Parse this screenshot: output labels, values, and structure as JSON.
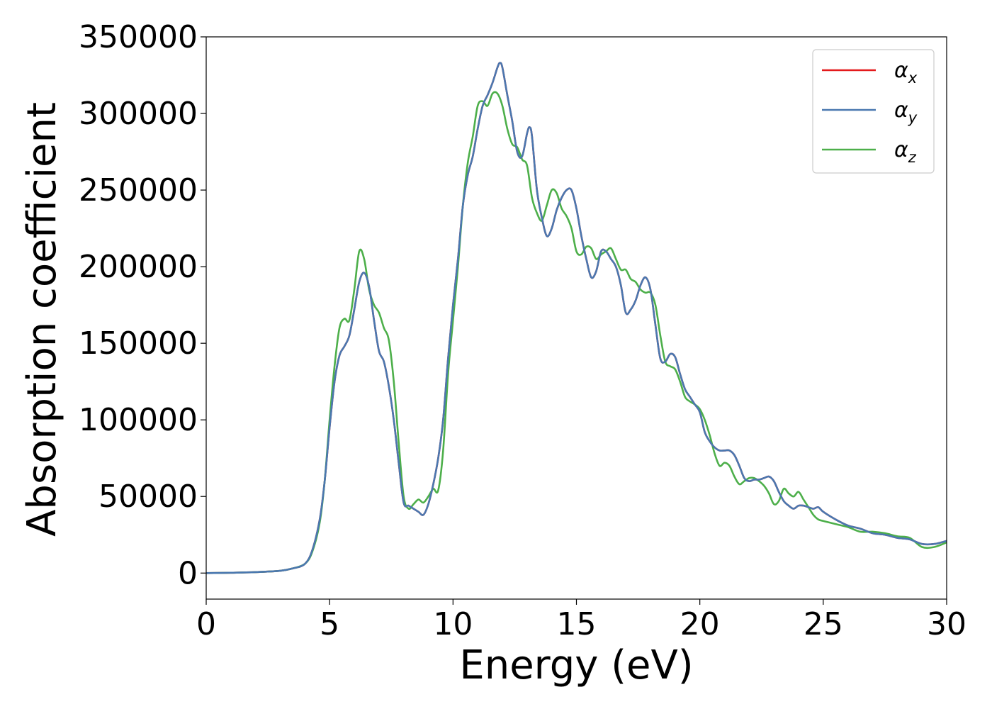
{
  "chart_data": {
    "type": "line",
    "title": "",
    "xlabel": "Energy (eV)",
    "ylabel": "Absorption coefficient",
    "xlim": [
      0,
      30
    ],
    "ylim": [
      -17000,
      350000
    ],
    "xticks": [
      0,
      5,
      10,
      15,
      20,
      25,
      30
    ],
    "yticks": [
      0,
      50000,
      100000,
      150000,
      200000,
      250000,
      300000,
      350000
    ],
    "grid": false,
    "legend_position": "top-right",
    "series": [
      {
        "name": "α",
        "subscript": "x",
        "color": "#e41a1c",
        "x": [
          0,
          1,
          2,
          3,
          3.5,
          4,
          4.3,
          4.6,
          4.8,
          5,
          5.2,
          5.4,
          5.6,
          5.8,
          6,
          6.2,
          6.4,
          6.6,
          6.8,
          7,
          7.2,
          7.4,
          7.6,
          7.8,
          8,
          8.2,
          8.4,
          8.6,
          8.8,
          9,
          9.2,
          9.4,
          9.6,
          9.8,
          10,
          10.2,
          10.4,
          10.6,
          10.8,
          11,
          11.2,
          11.4,
          11.6,
          11.8,
          11.9,
          12,
          12.2,
          12.4,
          12.6,
          12.8,
          13,
          13.1,
          13.2,
          13.4,
          13.6,
          13.8,
          14,
          14.2,
          14.4,
          14.6,
          14.8,
          15,
          15.2,
          15.4,
          15.6,
          15.8,
          16,
          16.2,
          16.4,
          16.6,
          16.8,
          17,
          17.2,
          17.4,
          17.6,
          17.8,
          18,
          18.2,
          18.4,
          18.6,
          18.8,
          19,
          19.2,
          19.4,
          19.6,
          19.8,
          20,
          20.2,
          20.4,
          20.6,
          20.8,
          21,
          21.2,
          21.4,
          21.6,
          21.8,
          22,
          22.2,
          22.4,
          22.6,
          22.8,
          23,
          23.2,
          23.4,
          23.6,
          23.8,
          24,
          24.2,
          24.4,
          24.6,
          24.8,
          25,
          25.5,
          26,
          26.5,
          27,
          27.5,
          28,
          28.5,
          29,
          29.5,
          30
        ],
        "y": [
          0,
          200,
          600,
          1500,
          3000,
          6000,
          15000,
          35000,
          60000,
          95000,
          125000,
          142000,
          148000,
          155000,
          172000,
          190000,
          196000,
          187000,
          165000,
          145000,
          138000,
          122000,
          100000,
          72000,
          46000,
          44000,
          42000,
          40000,
          38000,
          45000,
          58000,
          75000,
          100000,
          140000,
          175000,
          205000,
          240000,
          260000,
          272000,
          290000,
          305000,
          312000,
          320000,
          330000,
          333000,
          330000,
          312000,
          295000,
          275000,
          272000,
          287000,
          291000,
          285000,
          250000,
          232000,
          220000,
          225000,
          237000,
          245000,
          250000,
          250000,
          238000,
          220000,
          205000,
          193000,
          197000,
          210000,
          210000,
          205000,
          200000,
          188000,
          170000,
          172000,
          178000,
          188000,
          193000,
          185000,
          162000,
          140000,
          138000,
          143000,
          141000,
          130000,
          120000,
          115000,
          110000,
          105000,
          92000,
          86000,
          82000,
          80000,
          80000,
          80000,
          77000,
          70000,
          62000,
          60000,
          61000,
          61000,
          62000,
          63000,
          60000,
          53000,
          47000,
          44000,
          42000,
          44000,
          44000,
          43000,
          42000,
          43000,
          40000,
          35000,
          31000,
          29000,
          26000,
          25000,
          23000,
          22000,
          19000,
          19000,
          21000
        ],
        "note_visible": "x series drawn underneath y series (nearly identical)"
      },
      {
        "name": "α",
        "subscript": "y",
        "color": "#4a78b0",
        "x": [
          0,
          1,
          2,
          3,
          3.5,
          4,
          4.3,
          4.6,
          4.8,
          5,
          5.2,
          5.4,
          5.6,
          5.8,
          6,
          6.2,
          6.4,
          6.6,
          6.8,
          7,
          7.2,
          7.4,
          7.6,
          7.8,
          8,
          8.2,
          8.4,
          8.6,
          8.8,
          9,
          9.2,
          9.4,
          9.6,
          9.8,
          10,
          10.2,
          10.4,
          10.6,
          10.8,
          11,
          11.2,
          11.4,
          11.6,
          11.8,
          11.9,
          12,
          12.2,
          12.4,
          12.6,
          12.8,
          13,
          13.1,
          13.2,
          13.4,
          13.6,
          13.8,
          14,
          14.2,
          14.4,
          14.6,
          14.8,
          15,
          15.2,
          15.4,
          15.6,
          15.8,
          16,
          16.2,
          16.4,
          16.6,
          16.8,
          17,
          17.2,
          17.4,
          17.6,
          17.8,
          18,
          18.2,
          18.4,
          18.6,
          18.8,
          19,
          19.2,
          19.4,
          19.6,
          19.8,
          20,
          20.2,
          20.4,
          20.6,
          20.8,
          21,
          21.2,
          21.4,
          21.6,
          21.8,
          22,
          22.2,
          22.4,
          22.6,
          22.8,
          23,
          23.2,
          23.4,
          23.6,
          23.8,
          24,
          24.2,
          24.4,
          24.6,
          24.8,
          25,
          25.5,
          26,
          26.5,
          27,
          27.5,
          28,
          28.5,
          29,
          29.5,
          30
        ],
        "y": [
          0,
          200,
          600,
          1500,
          3000,
          6000,
          15000,
          35000,
          60000,
          95000,
          125000,
          142000,
          148000,
          155000,
          172000,
          190000,
          196000,
          187000,
          165000,
          145000,
          138000,
          122000,
          100000,
          72000,
          46000,
          44000,
          42000,
          40000,
          38000,
          45000,
          58000,
          75000,
          100000,
          140000,
          175000,
          205000,
          240000,
          260000,
          272000,
          290000,
          305000,
          312000,
          320000,
          330000,
          333000,
          330000,
          312000,
          295000,
          275000,
          272000,
          287000,
          291000,
          285000,
          250000,
          232000,
          220000,
          225000,
          237000,
          245000,
          250000,
          250000,
          238000,
          220000,
          205000,
          193000,
          197000,
          210000,
          210000,
          205000,
          200000,
          188000,
          170000,
          172000,
          178000,
          188000,
          193000,
          185000,
          162000,
          140000,
          138000,
          143000,
          141000,
          130000,
          120000,
          115000,
          110000,
          105000,
          92000,
          86000,
          82000,
          80000,
          80000,
          80000,
          77000,
          70000,
          62000,
          60000,
          61000,
          61000,
          62000,
          63000,
          60000,
          53000,
          47000,
          44000,
          42000,
          44000,
          44000,
          43000,
          42000,
          43000,
          40000,
          35000,
          31000,
          29000,
          26000,
          25000,
          23000,
          22000,
          19000,
          19000,
          21000
        ]
      },
      {
        "name": "α",
        "subscript": "z",
        "color": "#4daf4a",
        "x": [
          0,
          1,
          2,
          3,
          3.5,
          4,
          4.3,
          4.6,
          4.8,
          5,
          5.2,
          5.4,
          5.6,
          5.8,
          6,
          6.2,
          6.4,
          6.6,
          6.8,
          7,
          7.2,
          7.4,
          7.6,
          7.8,
          8,
          8.2,
          8.4,
          8.6,
          8.8,
          9,
          9.2,
          9.4,
          9.6,
          9.8,
          10,
          10.2,
          10.4,
          10.6,
          10.8,
          11,
          11.2,
          11.4,
          11.6,
          11.8,
          12,
          12.2,
          12.4,
          12.6,
          12.8,
          13,
          13.2,
          13.4,
          13.6,
          13.8,
          14,
          14.2,
          14.4,
          14.6,
          14.8,
          15,
          15.2,
          15.4,
          15.6,
          15.8,
          16,
          16.2,
          16.4,
          16.6,
          16.8,
          17,
          17.2,
          17.4,
          17.6,
          17.8,
          18,
          18.2,
          18.4,
          18.6,
          18.8,
          19,
          19.2,
          19.4,
          19.6,
          19.8,
          20,
          20.2,
          20.4,
          20.6,
          20.8,
          21,
          21.2,
          21.4,
          21.6,
          21.8,
          22,
          22.2,
          22.4,
          22.6,
          22.8,
          23,
          23.2,
          23.4,
          23.6,
          23.8,
          24,
          24.2,
          24.4,
          24.6,
          24.8,
          25,
          25.5,
          26,
          26.5,
          27,
          27.5,
          28,
          28.5,
          29,
          29.5,
          30
        ],
        "y": [
          0,
          200,
          600,
          1500,
          3000,
          6000,
          14000,
          33000,
          60000,
          100000,
          135000,
          160000,
          166000,
          165000,
          185000,
          210000,
          205000,
          185000,
          175000,
          170000,
          160000,
          152000,
          125000,
          85000,
          50000,
          42000,
          45000,
          48000,
          46000,
          50000,
          55000,
          54000,
          80000,
          130000,
          165000,
          200000,
          240000,
          268000,
          285000,
          305000,
          308000,
          305000,
          313000,
          313000,
          305000,
          290000,
          280000,
          278000,
          270000,
          266000,
          245000,
          235000,
          230000,
          240000,
          250000,
          248000,
          238000,
          233000,
          225000,
          210000,
          208000,
          213000,
          212000,
          205000,
          208000,
          210000,
          212000,
          205000,
          198000,
          198000,
          192000,
          190000,
          185000,
          183000,
          183000,
          175000,
          155000,
          138000,
          135000,
          133000,
          125000,
          115000,
          112000,
          110000,
          107000,
          100000,
          90000,
          78000,
          70000,
          72000,
          70000,
          63000,
          58000,
          60000,
          62000,
          62000,
          60000,
          57000,
          52000,
          45000,
          47000,
          55000,
          52000,
          50000,
          53000,
          48000,
          43000,
          38000,
          35000,
          34000,
          32000,
          30000,
          27000,
          27000,
          26000,
          24000,
          23000,
          17000,
          17000,
          20000
        ]
      }
    ]
  }
}
